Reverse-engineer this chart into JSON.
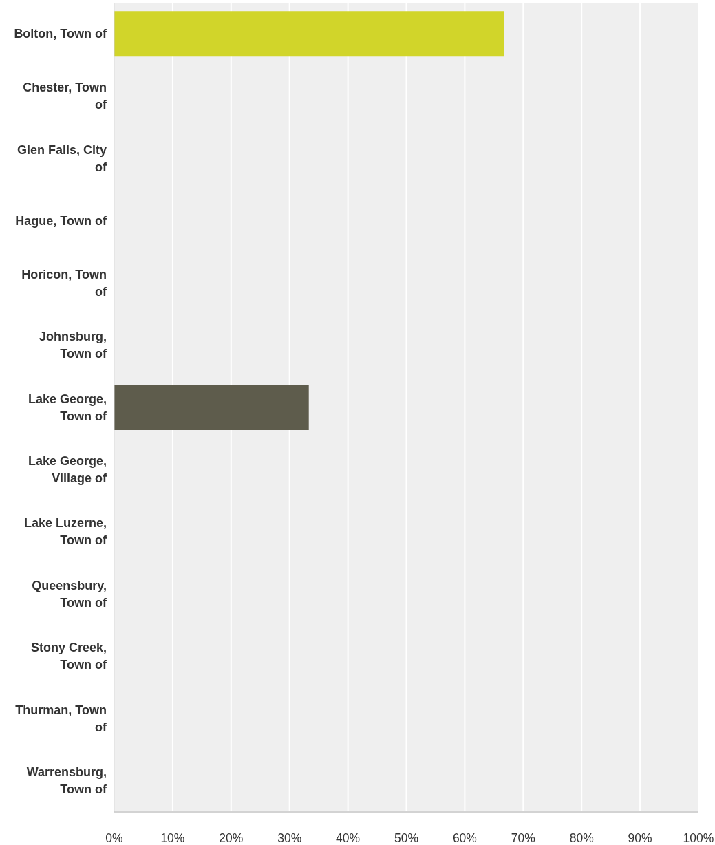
{
  "chart_data": {
    "type": "bar",
    "orientation": "horizontal",
    "categories": [
      "Bolton, Town of",
      "Chester, Town of",
      "Glen Falls, City of",
      "Hague, Town of",
      "Horicon, Town of",
      "Johnsburg, Town of",
      "Lake George, Town of",
      "Lake George, Village of",
      "Lake Luzerne, Town of",
      "Queensbury, Town of",
      "Stony Creek, Town of",
      "Thurman, Town of",
      "Warrensburg, Town of"
    ],
    "values": [
      66.7,
      0,
      0,
      0,
      0,
      0,
      33.3,
      0,
      0,
      0,
      0,
      0,
      0
    ],
    "colors": [
      "#d1d52a",
      null,
      null,
      null,
      null,
      null,
      "#5e5c4c",
      null,
      null,
      null,
      null,
      null,
      null
    ],
    "xlim": [
      0,
      100
    ],
    "xticks": [
      {
        "value": 0,
        "label": "0%"
      },
      {
        "value": 10,
        "label": "10%"
      },
      {
        "value": 20,
        "label": "20%"
      },
      {
        "value": 30,
        "label": "30%"
      },
      {
        "value": 40,
        "label": "40%"
      },
      {
        "value": 50,
        "label": "50%"
      },
      {
        "value": 60,
        "label": "60%"
      },
      {
        "value": 70,
        "label": "70%"
      },
      {
        "value": 80,
        "label": "80%"
      },
      {
        "value": 90,
        "label": "90%"
      },
      {
        "value": 100,
        "label": "100%"
      }
    ],
    "grid": "x"
  }
}
